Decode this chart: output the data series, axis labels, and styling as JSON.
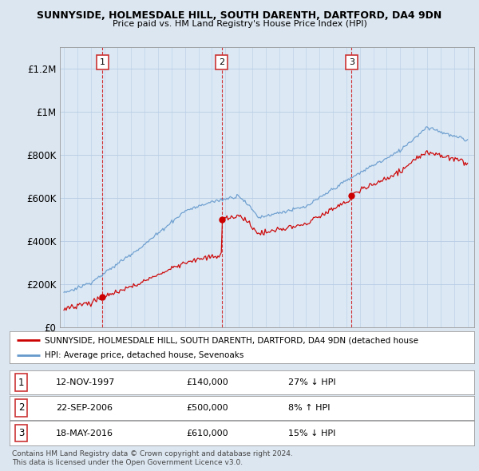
{
  "title1": "SUNNYSIDE, HOLMESDALE HILL, SOUTH DARENTH, DARTFORD, DA4 9DN",
  "title2": "Price paid vs. HM Land Registry's House Price Index (HPI)",
  "ylim": [
    0,
    1300000
  ],
  "yticks": [
    0,
    200000,
    400000,
    600000,
    800000,
    1000000,
    1200000
  ],
  "ytick_labels": [
    "£0",
    "£200K",
    "£400K",
    "£600K",
    "£800K",
    "£1M",
    "£1.2M"
  ],
  "sale_dates_num": [
    1997.87,
    2006.73,
    2016.38
  ],
  "sale_prices": [
    140000,
    500000,
    610000
  ],
  "sale_labels": [
    "1",
    "2",
    "3"
  ],
  "sale_color": "#cc0000",
  "hpi_color": "#6699cc",
  "legend_line1": "SUNNYSIDE, HOLMESDALE HILL, SOUTH DARENTH, DARTFORD, DA4 9DN (detached house",
  "legend_line2": "HPI: Average price, detached house, Sevenoaks",
  "table_rows": [
    [
      "1",
      "12-NOV-1997",
      "£140,000",
      "27% ↓ HPI"
    ],
    [
      "2",
      "22-SEP-2006",
      "£500,000",
      "8% ↑ HPI"
    ],
    [
      "3",
      "18-MAY-2016",
      "£610,000",
      "15% ↓ HPI"
    ]
  ],
  "footnote1": "Contains HM Land Registry data © Crown copyright and database right 2024.",
  "footnote2": "This data is licensed under the Open Government Licence v3.0.",
  "background_color": "#dce6f0",
  "plot_bg_color": "#dce9f5",
  "dashed_vline_color": "#cc0000"
}
